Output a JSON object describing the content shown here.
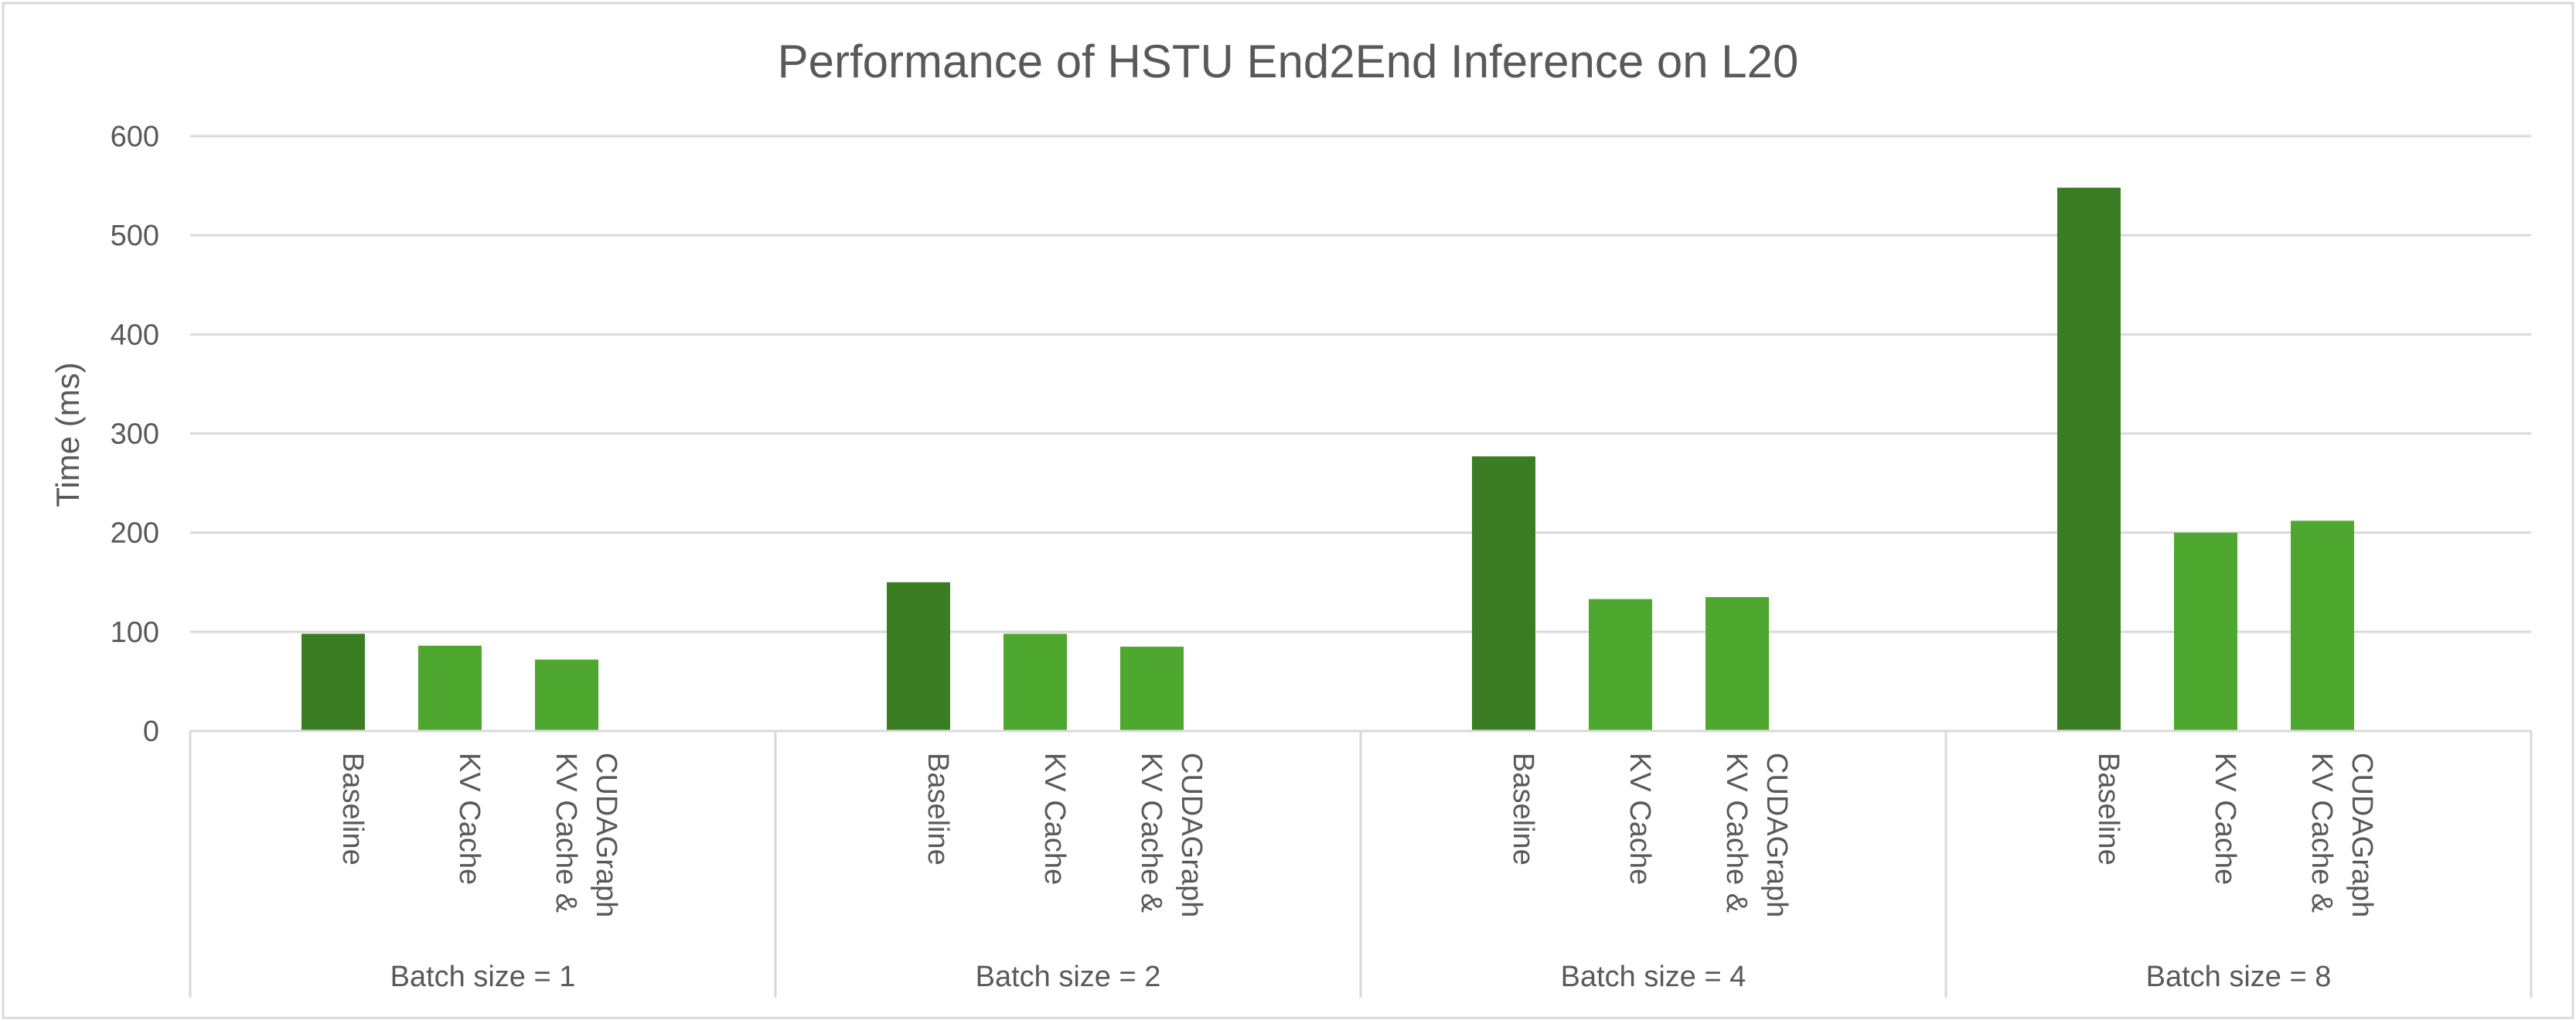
{
  "chart_data": {
    "type": "bar",
    "title": "Performance of HSTU End2End Inference on L20",
    "ylabel": "Time (ms)",
    "xlabel": "",
    "ylim": [
      0,
      600
    ],
    "yticks": [
      0,
      100,
      200,
      300,
      400,
      500,
      600
    ],
    "grid": true,
    "groups": [
      {
        "label": "Batch size = 1",
        "bars": [
          {
            "category": "Baseline",
            "value": 98
          },
          {
            "category": "KV Cache",
            "value": 86
          },
          {
            "category": "KV Cache & CUDAGraph",
            "value": 72
          }
        ]
      },
      {
        "label": "Batch size = 2",
        "bars": [
          {
            "category": "Baseline",
            "value": 150
          },
          {
            "category": "KV Cache",
            "value": 98
          },
          {
            "category": "KV Cache & CUDAGraph",
            "value": 85
          }
        ]
      },
      {
        "label": "Batch size = 4",
        "bars": [
          {
            "category": "Baseline",
            "value": 277
          },
          {
            "category": "KV Cache",
            "value": 133
          },
          {
            "category": "KV Cache & CUDAGraph",
            "value": 135
          }
        ]
      },
      {
        "label": "Batch size = 8",
        "bars": [
          {
            "category": "Baseline",
            "value": 548
          },
          {
            "category": "KV Cache",
            "value": 200
          },
          {
            "category": "KV Cache & CUDAGraph",
            "value": 212
          }
        ]
      }
    ],
    "category_label_lines": {
      "Baseline": [
        "Baseline"
      ],
      "KV Cache": [
        "KV Cache"
      ],
      "KV Cache & CUDAGraph": [
        "KV Cache &",
        "CUDAGraph"
      ]
    },
    "colors": {
      "Baseline": "#3a7d22",
      "KV Cache": "#4ea72e",
      "KV Cache & CUDAGraph": "#4ea72e",
      "grid": "#d9d9d9",
      "axis": "#d9d9d9",
      "text": "#595959",
      "border": "#d9d9d9"
    }
  }
}
